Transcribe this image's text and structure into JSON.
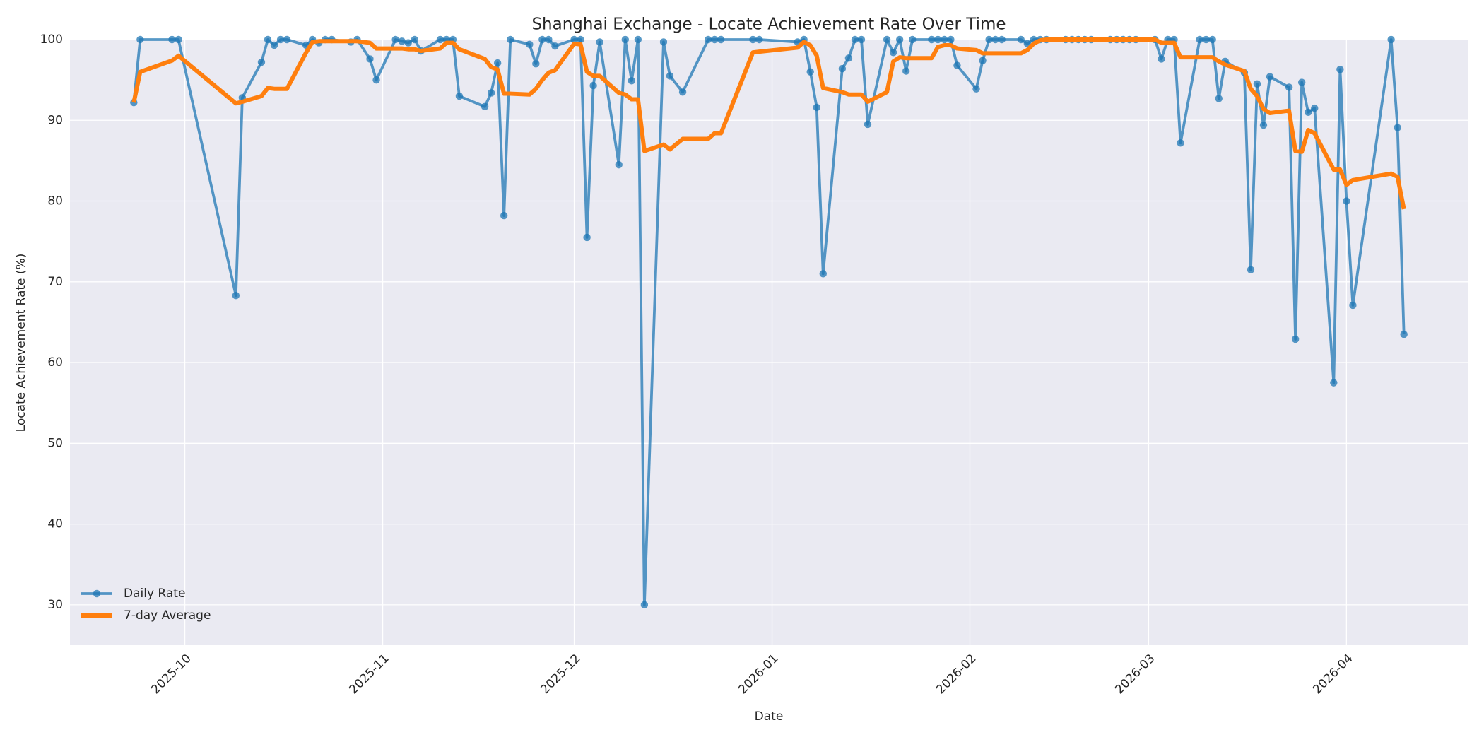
{
  "chart_data": {
    "type": "line",
    "title": "Shanghai Exchange - Locate Achievement Rate Over Time",
    "xlabel": "Date",
    "ylabel": "Locate Achievement Rate (%)",
    "x": [
      "2025-09-23",
      "2025-09-24",
      "2025-09-29",
      "2025-09-30",
      "2025-10-09",
      "2025-10-10",
      "2025-10-13",
      "2025-10-14",
      "2025-10-15",
      "2025-10-16",
      "2025-10-17",
      "2025-10-20",
      "2025-10-21",
      "2025-10-22",
      "2025-10-23",
      "2025-10-24",
      "2025-10-27",
      "2025-10-28",
      "2025-10-30",
      "2025-10-31",
      "2025-11-03",
      "2025-11-04",
      "2025-11-05",
      "2025-11-06",
      "2025-11-07",
      "2025-11-10",
      "2025-11-11",
      "2025-11-12",
      "2025-11-13",
      "2025-11-17",
      "2025-11-18",
      "2025-11-19",
      "2025-11-20",
      "2025-11-21",
      "2025-11-24",
      "2025-11-25",
      "2025-11-26",
      "2025-11-27",
      "2025-11-28",
      "2025-12-01",
      "2025-12-02",
      "2025-12-03",
      "2025-12-04",
      "2025-12-05",
      "2025-12-08",
      "2025-12-09",
      "2025-12-10",
      "2025-12-11",
      "2025-12-12",
      "2025-12-15",
      "2025-12-16",
      "2025-12-18",
      "2025-12-22",
      "2025-12-23",
      "2025-12-24",
      "2025-12-29",
      "2025-12-30",
      "2026-01-05",
      "2026-01-06",
      "2026-01-07",
      "2026-01-08",
      "2026-01-09",
      "2026-01-12",
      "2026-01-13",
      "2026-01-14",
      "2026-01-15",
      "2026-01-16",
      "2026-01-19",
      "2026-01-20",
      "2026-01-21",
      "2026-01-22",
      "2026-01-23",
      "2026-01-26",
      "2026-01-27",
      "2026-01-28",
      "2026-01-29",
      "2026-01-30",
      "2026-02-02",
      "2026-02-03",
      "2026-02-04",
      "2026-02-05",
      "2026-02-06",
      "2026-02-09",
      "2026-02-10",
      "2026-02-11",
      "2026-02-12",
      "2026-02-13",
      "2026-02-16",
      "2026-02-17",
      "2026-02-18",
      "2026-02-19",
      "2026-02-20",
      "2026-02-23",
      "2026-02-24",
      "2026-02-25",
      "2026-02-26",
      "2026-02-27",
      "2026-03-02",
      "2026-03-03",
      "2026-03-04",
      "2026-03-05",
      "2026-03-06",
      "2026-03-09",
      "2026-03-10",
      "2026-03-11",
      "2026-03-12",
      "2026-03-13",
      "2026-03-16",
      "2026-03-17",
      "2026-03-18",
      "2026-03-19",
      "2026-03-20",
      "2026-03-23",
      "2026-03-24",
      "2026-03-25",
      "2026-03-26",
      "2026-03-27",
      "2026-03-30",
      "2026-03-31",
      "2026-04-01",
      "2026-04-02",
      "2026-04-08",
      "2026-04-09",
      "2026-04-10"
    ],
    "series": [
      {
        "name": "Daily Rate",
        "color": "#1f77b4",
        "marker": true,
        "values": [
          92.2,
          100,
          100,
          100,
          68.3,
          92.8,
          97.2,
          100,
          99.3,
          100,
          100,
          99.3,
          100,
          99.6,
          100,
          100,
          99.7,
          100,
          97.6,
          95,
          100,
          99.8,
          99.6,
          100,
          98.6,
          100,
          100,
          100,
          93,
          91.7,
          93.4,
          97.1,
          78.2,
          100,
          99.4,
          97,
          100,
          100,
          99.2,
          100,
          100,
          75.5,
          94.3,
          99.7,
          84.5,
          100,
          94.9,
          100,
          30,
          99.7,
          95.5,
          93.5,
          100,
          100,
          100,
          100,
          100,
          99.7,
          100,
          96,
          91.6,
          71,
          96.4,
          97.7,
          100,
          100,
          89.5,
          100,
          98.4,
          100,
          96.1,
          100,
          100,
          100,
          100,
          100,
          96.8,
          93.9,
          97.4,
          100,
          100,
          100,
          100,
          99.5,
          100,
          100,
          100,
          100,
          100,
          100,
          100,
          100,
          100,
          100,
          100,
          100,
          100,
          100,
          97.6,
          100,
          100,
          87.2,
          100,
          100,
          100,
          92.7,
          97.3,
          95.9,
          71.5,
          94.5,
          89.4,
          95.4,
          94.1,
          62.9,
          94.7,
          91,
          91.5,
          57.5,
          96.3,
          80,
          67.1,
          100,
          89.1,
          63.5
        ]
      },
      {
        "name": "7-day Average",
        "color": "#ff7f0e",
        "marker": false,
        "values": [
          92.2,
          96,
          97.4,
          98,
          92.1,
          92.3,
          93,
          94,
          93.9,
          93.9,
          93.9,
          98.4,
          99.7,
          99.8,
          99.8,
          99.8,
          99.8,
          99.8,
          99.6,
          98.9,
          98.9,
          98.9,
          98.8,
          98.8,
          98.6,
          98.9,
          99.6,
          99.6,
          98.8,
          97.6,
          96.6,
          96.3,
          93.3,
          93.3,
          93.2,
          93.9,
          95,
          95.9,
          96.2,
          99.5,
          99.4,
          96,
          95.5,
          95.5,
          93.4,
          93.2,
          92.6,
          92.6,
          86.2,
          87,
          86.4,
          87.7,
          87.7,
          88.4,
          88.4,
          98.4,
          98.5,
          99,
          99.7,
          99.3,
          98,
          94,
          93.5,
          93.2,
          93.2,
          93.2,
          92.3,
          93.5,
          97.3,
          97.8,
          97.7,
          97.7,
          97.7,
          99.1,
          99.3,
          99.3,
          98.9,
          98.7,
          98.3,
          98.3,
          98.3,
          98.3,
          98.3,
          98.7,
          99.5,
          99.9,
          100,
          100,
          100,
          100,
          100,
          100,
          100,
          100,
          100,
          100,
          100,
          100,
          99.6,
          99.6,
          99.6,
          97.8,
          97.8,
          97.8,
          97.8,
          97.3,
          96.9,
          96.1,
          93.9,
          93,
          91.4,
          90.9,
          91.2,
          86.2,
          86.1,
          88.8,
          88.4,
          83.9,
          83.9,
          82,
          82.6,
          83.4,
          83,
          79
        ]
      }
    ],
    "xlim": [
      "2025-09-13",
      "2026-04-20"
    ],
    "xticks": [
      "2025-10",
      "2025-11",
      "2025-12",
      "2026-01",
      "2026-02",
      "2026-03",
      "2026-04"
    ],
    "ylim": [
      25,
      100
    ],
    "yticks": [
      30,
      40,
      50,
      60,
      70,
      80,
      90,
      100
    ],
    "grid": true,
    "legend": "lower left"
  }
}
